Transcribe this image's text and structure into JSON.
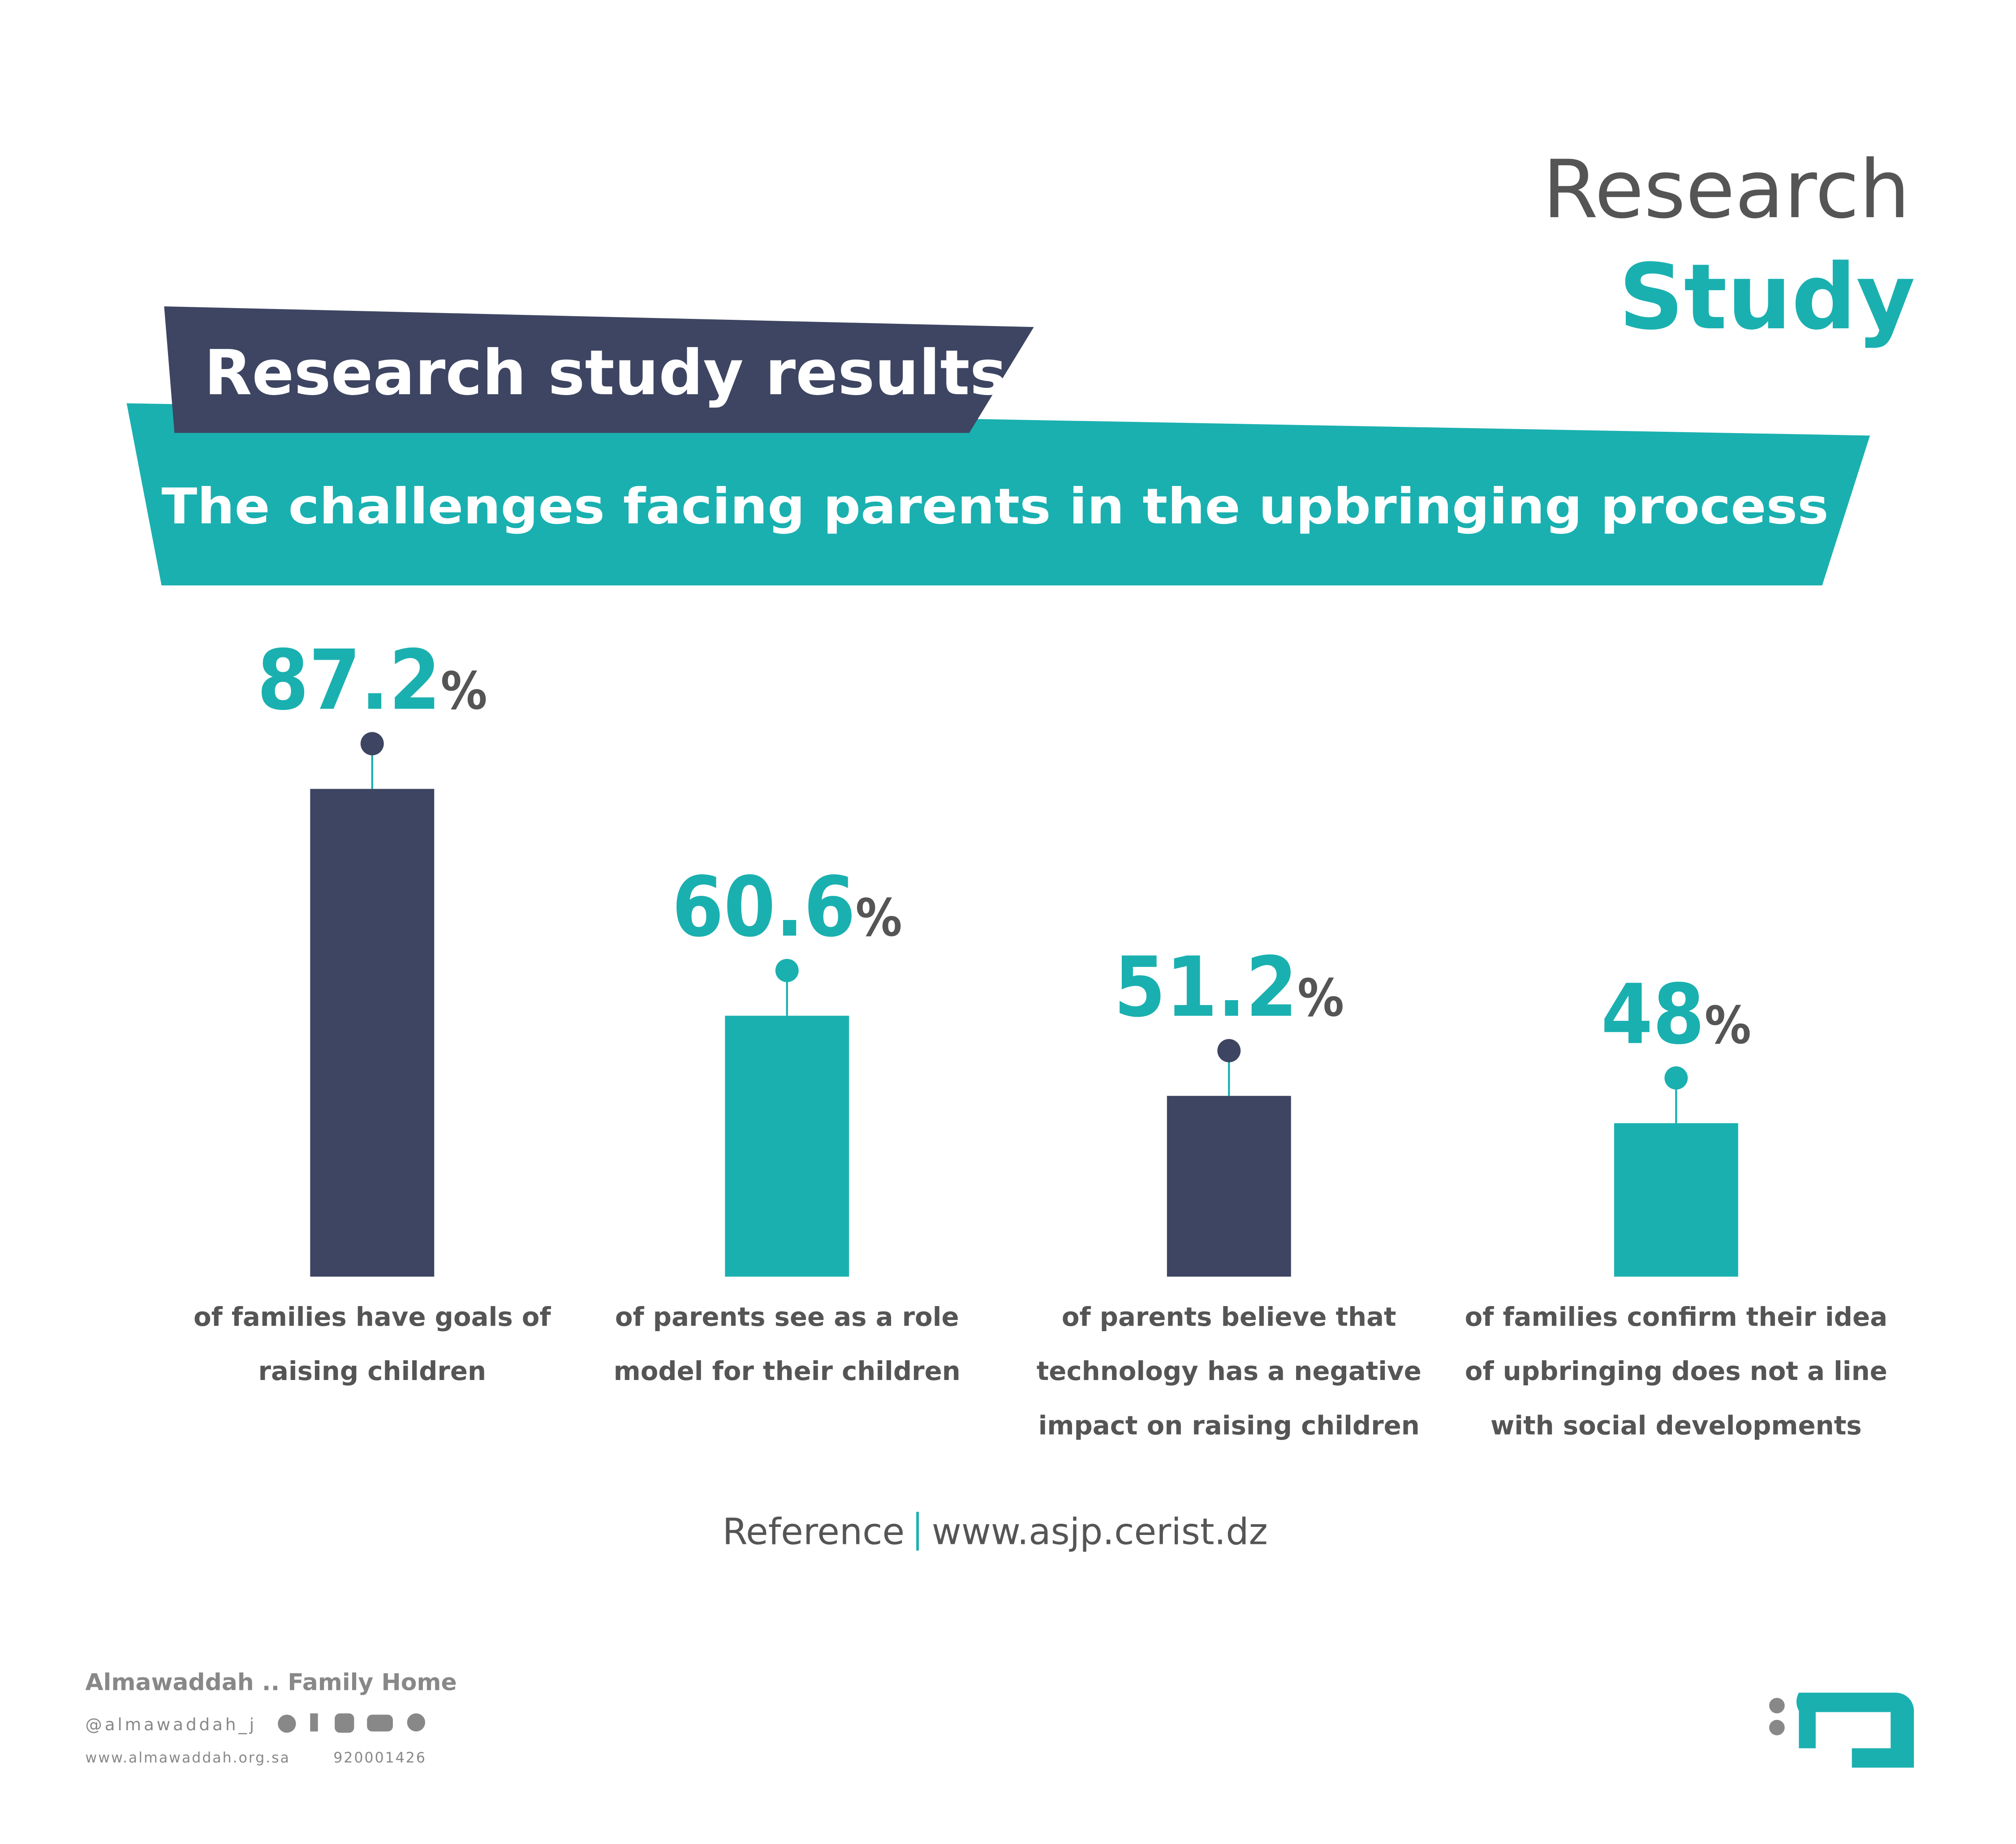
{
  "header": {
    "title_top": "Research",
    "title_bottom": "Study"
  },
  "banner": {
    "title": "Research study results",
    "subtitle": "The challenges facing parents in the upbringing process"
  },
  "chart_data": {
    "type": "bar",
    "categories": [
      "of families have goals of raising children",
      "of parents see as a role model for their children",
      "of parents believe that technology has a negative impact on raising children",
      "of families confirm their idea of upbringing does not a line with social developments"
    ],
    "values": [
      87.2,
      60.6,
      51.2,
      48
    ],
    "value_labels": [
      "87.2%",
      "60.6%",
      "51.2%",
      "48%"
    ],
    "colors": [
      "#3d4562",
      "#1ab0b0",
      "#3d4562",
      "#1ab0b0"
    ]
  },
  "reference": {
    "label": "Reference",
    "url": "www.asjp.cerist.dz"
  },
  "footer": {
    "name": "Almawaddah .. Family Home",
    "handle": "@almawaddah_j",
    "website": "www.almawaddah.org.sa",
    "phone": "920001426"
  }
}
